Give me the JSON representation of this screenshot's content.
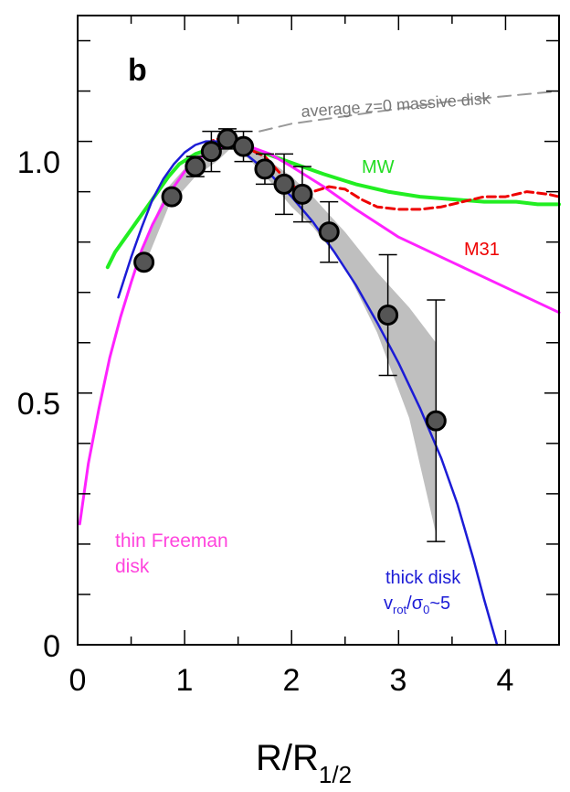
{
  "chart_data": {
    "type": "line",
    "panel_label": "b",
    "xlabel": "R/R",
    "xlabel_sub": "1/2",
    "ylabel": "",
    "xlim": [
      0,
      4.5
    ],
    "ylim": [
      0,
      1.25
    ],
    "x_ticks": [
      "0",
      "1",
      "2",
      "3",
      "4"
    ],
    "y_ticks": [
      "0",
      "0.5",
      "1.0"
    ],
    "grid": false,
    "annotations": {
      "average_disk": "average z=0 massive disk",
      "mw": "MW",
      "m31": "M31",
      "freeman_line1": "thin Freeman",
      "freeman_line2": "disk",
      "thick_line1": "thick disk",
      "thick_v": "v",
      "thick_rot": "rot",
      "thick_slash_sigma": "/σ",
      "thick_zero": "0",
      "thick_approx": "~5"
    },
    "colors": {
      "data_points": "#555555",
      "shaded_band": "#bfbfbf",
      "thick_disk": "#1c1cd6",
      "freeman_disk": "#ff22ff",
      "mw": "#22ee22",
      "m31": "#ee0000",
      "average_disk": "#999999"
    },
    "data_points": [
      {
        "x": 0.62,
        "y": 0.76,
        "err": 0
      },
      {
        "x": 0.88,
        "y": 0.89,
        "err": 0
      },
      {
        "x": 1.1,
        "y": 0.95,
        "err": 0.02
      },
      {
        "x": 1.25,
        "y": 0.98,
        "err": 0.04
      },
      {
        "x": 1.4,
        "y": 1.005,
        "err": 0.02
      },
      {
        "x": 1.55,
        "y": 0.99,
        "err": 0.03
      },
      {
        "x": 1.75,
        "y": 0.945,
        "err": 0.03
      },
      {
        "x": 1.93,
        "y": 0.915,
        "err": 0.06
      },
      {
        "x": 2.1,
        "y": 0.895,
        "err": 0.055
      },
      {
        "x": 2.35,
        "y": 0.82,
        "err": 0.06
      },
      {
        "x": 2.9,
        "y": 0.655,
        "err": 0.12
      },
      {
        "x": 3.35,
        "y": 0.445,
        "err": 0.24
      }
    ],
    "series": [
      {
        "name": "thick disk",
        "x": [
          0.38,
          0.5,
          0.6,
          0.7,
          0.8,
          0.9,
          1.0,
          1.1,
          1.2,
          1.3,
          1.45,
          1.6,
          1.8,
          2.0,
          2.2,
          2.4,
          2.6,
          2.8,
          3.0,
          3.2,
          3.4,
          3.55,
          3.7,
          3.8,
          3.88,
          3.92
        ],
        "y": [
          0.69,
          0.77,
          0.83,
          0.885,
          0.925,
          0.955,
          0.978,
          0.993,
          1.0,
          1.0,
          0.99,
          0.97,
          0.935,
          0.89,
          0.84,
          0.78,
          0.715,
          0.64,
          0.56,
          0.47,
          0.37,
          0.28,
          0.17,
          0.09,
          0.03,
          0.0
        ]
      },
      {
        "name": "thin Freeman disk",
        "x": [
          0.02,
          0.1,
          0.2,
          0.3,
          0.4,
          0.5,
          0.6,
          0.7,
          0.8,
          0.9,
          1.0,
          1.1,
          1.2,
          1.3,
          1.4,
          1.6,
          1.8,
          2.0,
          2.3,
          2.6,
          3.0,
          3.5,
          4.0,
          4.5
        ],
        "y": [
          0.24,
          0.36,
          0.47,
          0.57,
          0.65,
          0.72,
          0.785,
          0.835,
          0.875,
          0.91,
          0.94,
          0.96,
          0.975,
          0.985,
          0.99,
          0.99,
          0.975,
          0.95,
          0.91,
          0.865,
          0.81,
          0.76,
          0.71,
          0.66
        ]
      },
      {
        "name": "MW",
        "x": [
          0.28,
          0.35,
          0.45,
          0.55,
          0.65,
          0.75,
          0.85,
          0.95,
          1.1,
          1.3,
          1.5,
          1.7,
          1.9,
          2.1,
          2.3,
          2.6,
          2.9,
          3.2,
          3.5,
          3.8,
          4.1,
          4.3,
          4.5
        ],
        "y": [
          0.75,
          0.78,
          0.81,
          0.84,
          0.87,
          0.9,
          0.93,
          0.955,
          0.975,
          0.99,
          0.99,
          0.98,
          0.965,
          0.95,
          0.935,
          0.915,
          0.9,
          0.89,
          0.885,
          0.88,
          0.88,
          0.875,
          0.875
        ]
      },
      {
        "name": "M31",
        "x": [
          1.2,
          1.3,
          1.45,
          1.6,
          1.75,
          1.9,
          2.05,
          2.2,
          2.35,
          2.5,
          2.65,
          2.8,
          3.0,
          3.2,
          3.4,
          3.6,
          3.8,
          4.0,
          4.2,
          4.4,
          4.5
        ],
        "y": [
          0.995,
          1.005,
          1.0,
          0.985,
          0.97,
          0.935,
          0.905,
          0.9,
          0.91,
          0.905,
          0.885,
          0.87,
          0.865,
          0.865,
          0.87,
          0.88,
          0.89,
          0.89,
          0.9,
          0.895,
          0.89
        ]
      },
      {
        "name": "average z=0 massive disk",
        "x": [
          1.7,
          2.0,
          2.5,
          3.0,
          3.5,
          4.0,
          4.5
        ],
        "y": [
          1.02,
          1.035,
          1.05,
          1.065,
          1.08,
          1.09,
          1.1
        ]
      }
    ],
    "band": {
      "upper_x": [
        0.6,
        0.85,
        1.1,
        1.3,
        1.45,
        1.6,
        1.8,
        2.0,
        2.2,
        2.5,
        2.8,
        3.1,
        3.35
      ],
      "upper_y": [
        0.79,
        0.91,
        0.97,
        1.0,
        1.015,
        1.0,
        0.96,
        0.93,
        0.89,
        0.82,
        0.74,
        0.67,
        0.6
      ],
      "lower_x": [
        3.35,
        3.1,
        2.8,
        2.5,
        2.2,
        2.0,
        1.8,
        1.6,
        1.45,
        1.3,
        1.1,
        0.85,
        0.6
      ],
      "lower_y": [
        0.22,
        0.45,
        0.62,
        0.75,
        0.83,
        0.87,
        0.92,
        0.965,
        0.99,
        0.96,
        0.93,
        0.87,
        0.74
      ]
    }
  }
}
